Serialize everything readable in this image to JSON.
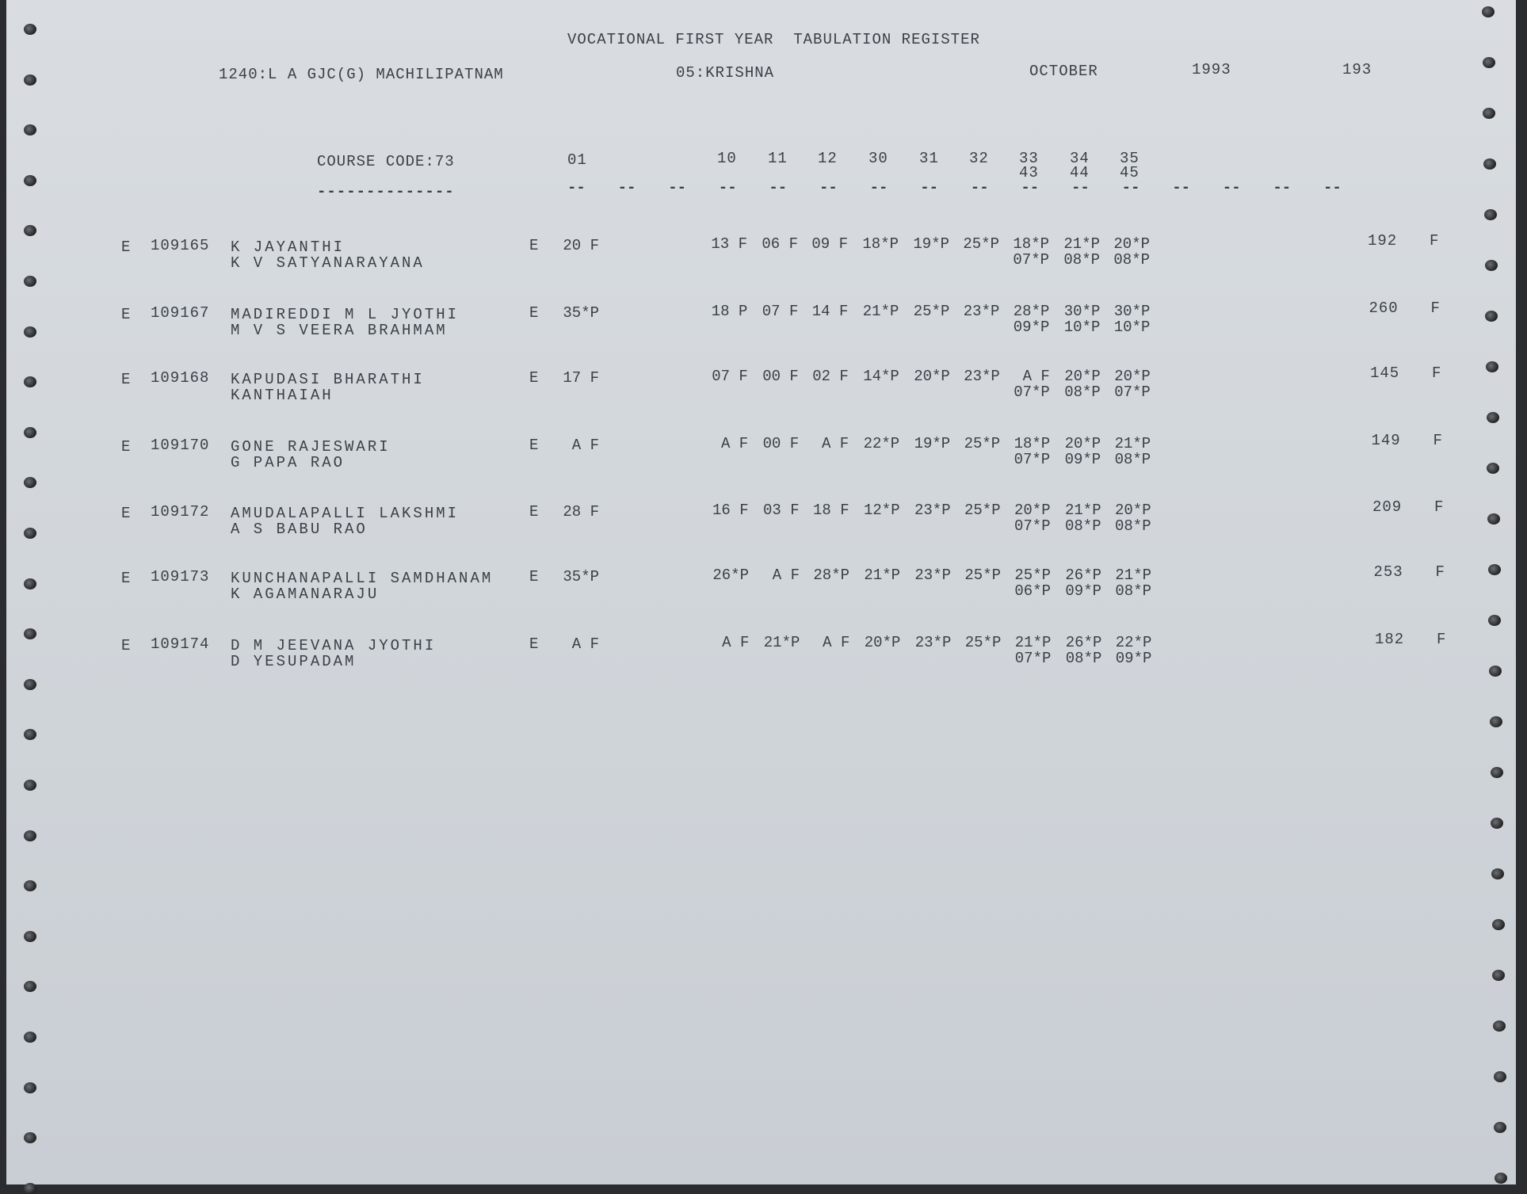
{
  "header": {
    "title": "VOCATIONAL FIRST YEAR  TABULATION REGISTER",
    "college": "1240:L A GJC(G) MACHILIPATNAM",
    "district": "05:KRISHNA",
    "month": "OCTOBER",
    "year": "1993",
    "page": "193"
  },
  "course": {
    "label": "COURSE CODE:73",
    "underline": "--------------",
    "first_column": "01",
    "columns": [
      "10",
      "11",
      "12",
      "30",
      "31",
      "32",
      "33",
      "34",
      "35"
    ],
    "columns_line2": [
      "43",
      "44",
      "45"
    ],
    "dash": "--"
  },
  "rows": [
    {
      "cat": "E",
      "roll": "109165",
      "name": "K JAYANTHI",
      "parent": "K V SATYANARAYANA",
      "code": "E",
      "m01": "20 F",
      "marks": [
        "13 F",
        "06 F",
        "09 F",
        "18*P",
        "19*P",
        "25*P",
        "18*P",
        "21*P",
        "20*P"
      ],
      "marks2": [
        "07*P",
        "08*P",
        "08*P"
      ],
      "total": "192",
      "result": "F"
    },
    {
      "cat": "E",
      "roll": "109167",
      "name": "MADIREDDI M L JYOTHI",
      "parent": "M V S VEERA BRAHMAM",
      "code": "E",
      "m01": "35*P",
      "marks": [
        "18 P",
        "07 F",
        "14 F",
        "21*P",
        "25*P",
        "23*P",
        "28*P",
        "30*P",
        "30*P"
      ],
      "marks2": [
        "09*P",
        "10*P",
        "10*P"
      ],
      "total": "260",
      "result": "F"
    },
    {
      "cat": "E",
      "roll": "109168",
      "name": "KAPUDASI BHARATHI",
      "parent": "KANTHAIAH",
      "code": "E",
      "m01": "17 F",
      "marks": [
        "07 F",
        "00 F",
        "02 F",
        "14*P",
        "20*P",
        "23*P",
        "A F",
        "20*P",
        "20*P"
      ],
      "marks2": [
        "07*P",
        "08*P",
        "07*P"
      ],
      "total": "145",
      "result": "F"
    },
    {
      "cat": "E",
      "roll": "109170",
      "name": "GONE RAJESWARI",
      "parent": "G PAPA RAO",
      "code": "E",
      "m01": "A F",
      "marks": [
        "A F",
        "00 F",
        "A F",
        "22*P",
        "19*P",
        "25*P",
        "18*P",
        "20*P",
        "21*P"
      ],
      "marks2": [
        "07*P",
        "09*P",
        "08*P"
      ],
      "total": "149",
      "result": "F"
    },
    {
      "cat": "E",
      "roll": "109172",
      "name": "AMUDALAPALLI LAKSHMI",
      "parent": "A S BABU RAO",
      "code": "E",
      "m01": "28 F",
      "marks": [
        "16 F",
        "03 F",
        "18 F",
        "12*P",
        "23*P",
        "25*P",
        "20*P",
        "21*P",
        "20*P"
      ],
      "marks2": [
        "07*P",
        "08*P",
        "08*P"
      ],
      "total": "209",
      "result": "F"
    },
    {
      "cat": "E",
      "roll": "109173",
      "name": "KUNCHANAPALLI SAMDHANAM",
      "parent": "K AGAMANARAJU",
      "code": "E",
      "m01": "35*P",
      "marks": [
        "26*P",
        "A F",
        "28*P",
        "21*P",
        "23*P",
        "25*P",
        "25*P",
        "26*P",
        "21*P"
      ],
      "marks2": [
        "06*P",
        "09*P",
        "08*P"
      ],
      "total": "253",
      "result": "F"
    },
    {
      "cat": "E",
      "roll": "109174",
      "name": "D M JEEVANA JYOTHI",
      "parent": "D YESUPADAM",
      "code": "E",
      "m01": "A F",
      "marks": [
        "A F",
        "21*P",
        "A F",
        "20*P",
        "23*P",
        "25*P",
        "21*P",
        "26*P",
        "22*P"
      ],
      "marks2": [
        "07*P",
        "08*P",
        "09*P"
      ],
      "total": "182",
      "result": "F"
    }
  ]
}
